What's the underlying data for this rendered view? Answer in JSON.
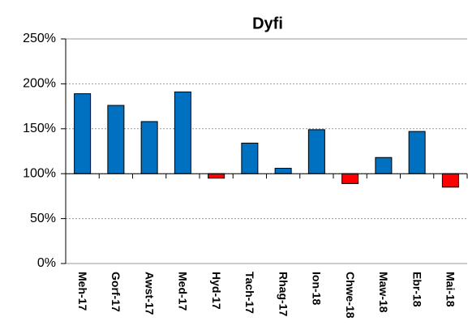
{
  "chart_data": {
    "type": "bar",
    "title": "Dyfi",
    "categories": [
      "Meh-17",
      "Gorf-17",
      "Awst-17",
      "Med-17",
      "Hyd-17",
      "Tach-17",
      "Rhag-17",
      "Ion-18",
      "Chwe-18",
      "Maw-18",
      "Ebr-18",
      "Mai-18"
    ],
    "values": [
      189,
      176,
      158,
      191,
      95,
      134,
      106,
      149,
      89,
      118,
      147,
      85
    ],
    "color": "#0070c0",
    "negative_color": "#ff0000",
    "x_axis_crossing": 100,
    "ylim": [
      0,
      250
    ],
    "yticks": [
      {
        "value": 0,
        "label": "0%"
      },
      {
        "value": 50,
        "label": "50%"
      },
      {
        "value": 100,
        "label": "100%"
      },
      {
        "value": 150,
        "label": "150%"
      },
      {
        "value": 200,
        "label": "200%"
      },
      {
        "value": 250,
        "label": "250%"
      }
    ],
    "grid": true
  }
}
